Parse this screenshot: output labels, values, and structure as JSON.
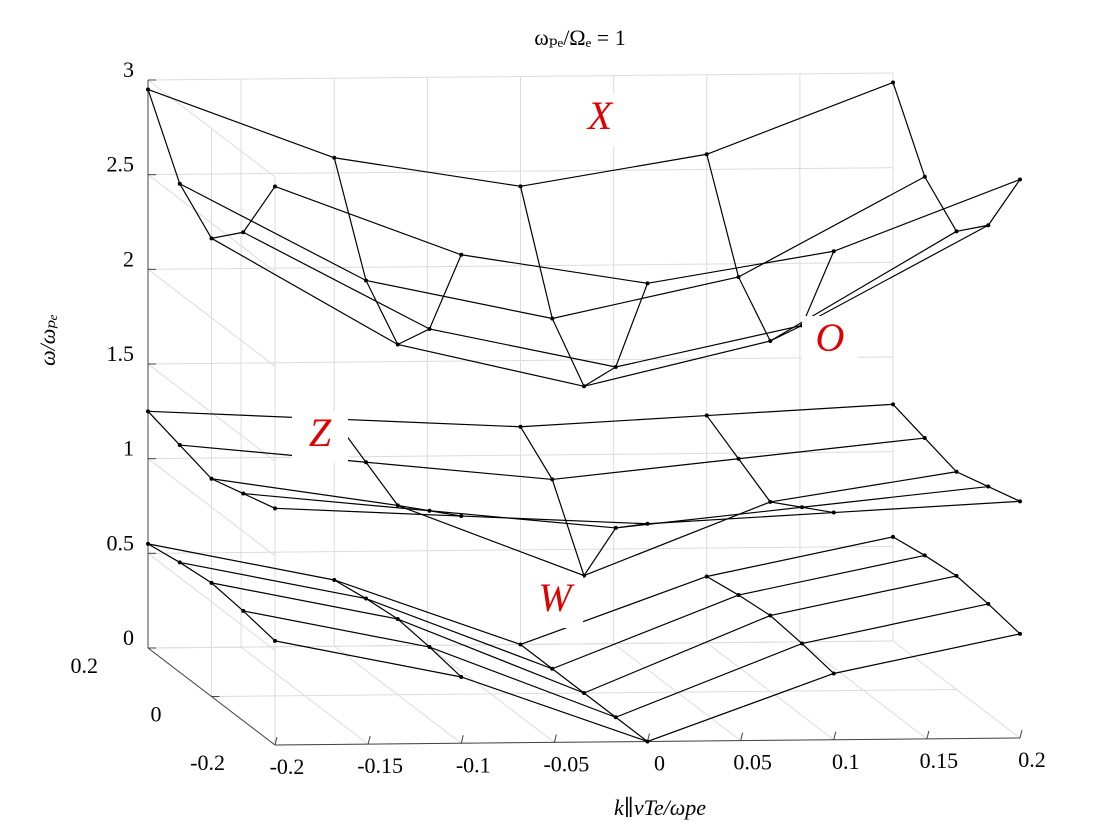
{
  "chart_data": {
    "type": "surface3d",
    "title": "ωₚₑ/Ωₑ = 1",
    "x_label": "k∥vTe/ωpe",
    "z_label": "ω/ωₚₑ",
    "x": [
      -0.2,
      -0.1,
      0,
      0.1,
      0.2
    ],
    "y": [
      -0.2,
      -0.1,
      0,
      0.1,
      0.2
    ],
    "xlim": [
      -0.2,
      0.2
    ],
    "ylim": [
      -0.2,
      0.2
    ],
    "zlim": [
      0,
      3
    ],
    "xticks": [
      -0.2,
      -0.15,
      -0.1,
      -0.05,
      0,
      0.05,
      0.1,
      0.15,
      0.2
    ],
    "yticks": [
      -0.2,
      0,
      0.2
    ],
    "zticks": [
      0,
      0.5,
      1,
      1.5,
      2,
      2.5,
      3
    ],
    "grid": true,
    "annotations": [
      "X",
      "O",
      "Z",
      "W"
    ],
    "series": [
      {
        "color": "#000000",
        "z": [
          [
            0.55,
            0.35,
            0,
            0.35,
            0.55
          ],
          [
            0.58,
            0.38,
            0,
            0.38,
            0.58
          ],
          [
            0.6,
            0.4,
            0,
            0.4,
            0.6
          ],
          [
            0.58,
            0.38,
            0,
            0.38,
            0.58
          ],
          [
            0.55,
            0.35,
            0,
            0.35,
            0.55
          ]
        ]
      },
      {
        "color": "#000000",
        "z": [
          [
            1.25,
            1.2,
            1.15,
            1.2,
            1.25
          ],
          [
            1.2,
            1.1,
            1.0,
            1.1,
            1.2
          ],
          [
            1.15,
            1.0,
            0.62,
            1.0,
            1.15
          ],
          [
            1.2,
            1.1,
            1.0,
            1.1,
            1.2
          ],
          [
            1.25,
            1.2,
            1.15,
            1.2,
            1.25
          ]
        ]
      },
      {
        "color": "#000000",
        "z": [
          [
            2.95,
            2.58,
            2.42,
            2.58,
            2.95
          ],
          [
            2.58,
            2.06,
            1.85,
            2.06,
            2.58
          ],
          [
            2.42,
            1.85,
            1.62,
            1.85,
            2.42
          ],
          [
            2.58,
            2.06,
            1.85,
            2.06,
            2.58
          ],
          [
            2.95,
            2.58,
            2.42,
            2.58,
            2.95
          ]
        ]
      }
    ]
  }
}
